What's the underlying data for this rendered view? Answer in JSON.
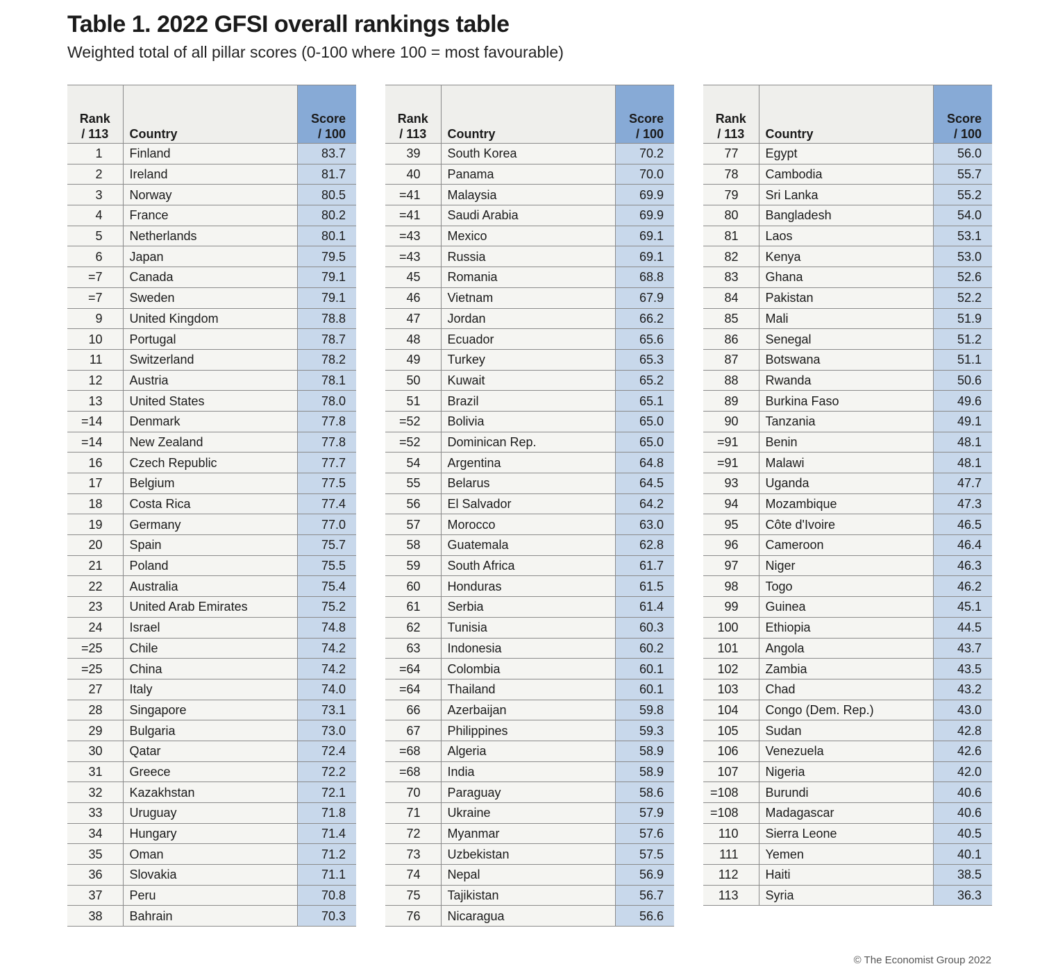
{
  "title": "Table 1. 2022 GFSI overall rankings table",
  "subtitle": "Weighted total of all pillar scores (0-100 where 100 = most favourable)",
  "headers": {
    "rank_line1": "Rank",
    "rank_line2": "/ 113",
    "country": "Country",
    "score_line1": "Score",
    "score_line2": "/ 100"
  },
  "footer": "© The Economist Group 2022",
  "colors": {
    "header_score_bg": "#87aad6",
    "score_cell_bg": "#c8d8eb",
    "header_bg": "#efefec",
    "cell_bg": "#f5f5f2"
  },
  "chart_data": {
    "type": "table",
    "columns": [
      "Rank / 113",
      "Country",
      "Score / 100"
    ],
    "rows": [
      {
        "rank": "1",
        "country": "Finland",
        "score": "83.7"
      },
      {
        "rank": "2",
        "country": "Ireland",
        "score": "81.7"
      },
      {
        "rank": "3",
        "country": "Norway",
        "score": "80.5"
      },
      {
        "rank": "4",
        "country": "France",
        "score": "80.2"
      },
      {
        "rank": "5",
        "country": "Netherlands",
        "score": "80.1"
      },
      {
        "rank": "6",
        "country": "Japan",
        "score": "79.5"
      },
      {
        "rank": "=7",
        "country": "Canada",
        "score": "79.1"
      },
      {
        "rank": "=7",
        "country": "Sweden",
        "score": "79.1"
      },
      {
        "rank": "9",
        "country": "United Kingdom",
        "score": "78.8"
      },
      {
        "rank": "10",
        "country": "Portugal",
        "score": "78.7"
      },
      {
        "rank": "11",
        "country": "Switzerland",
        "score": "78.2"
      },
      {
        "rank": "12",
        "country": "Austria",
        "score": "78.1"
      },
      {
        "rank": "13",
        "country": "United States",
        "score": "78.0"
      },
      {
        "rank": "=14",
        "country": "Denmark",
        "score": "77.8"
      },
      {
        "rank": "=14",
        "country": "New Zealand",
        "score": "77.8"
      },
      {
        "rank": "16",
        "country": "Czech Republic",
        "score": "77.7"
      },
      {
        "rank": "17",
        "country": "Belgium",
        "score": "77.5"
      },
      {
        "rank": "18",
        "country": "Costa Rica",
        "score": "77.4"
      },
      {
        "rank": "19",
        "country": "Germany",
        "score": "77.0"
      },
      {
        "rank": "20",
        "country": "Spain",
        "score": "75.7"
      },
      {
        "rank": "21",
        "country": "Poland",
        "score": "75.5"
      },
      {
        "rank": "22",
        "country": "Australia",
        "score": "75.4"
      },
      {
        "rank": "23",
        "country": "United Arab Emirates",
        "score": "75.2"
      },
      {
        "rank": "24",
        "country": "Israel",
        "score": "74.8"
      },
      {
        "rank": "=25",
        "country": "Chile",
        "score": "74.2"
      },
      {
        "rank": "=25",
        "country": "China",
        "score": "74.2"
      },
      {
        "rank": "27",
        "country": "Italy",
        "score": "74.0"
      },
      {
        "rank": "28",
        "country": "Singapore",
        "score": "73.1"
      },
      {
        "rank": "29",
        "country": "Bulgaria",
        "score": "73.0"
      },
      {
        "rank": "30",
        "country": "Qatar",
        "score": "72.4"
      },
      {
        "rank": "31",
        "country": "Greece",
        "score": "72.2"
      },
      {
        "rank": "32",
        "country": "Kazakhstan",
        "score": "72.1"
      },
      {
        "rank": "33",
        "country": "Uruguay",
        "score": "71.8"
      },
      {
        "rank": "34",
        "country": "Hungary",
        "score": "71.4"
      },
      {
        "rank": "35",
        "country": "Oman",
        "score": "71.2"
      },
      {
        "rank": "36",
        "country": "Slovakia",
        "score": "71.1"
      },
      {
        "rank": "37",
        "country": "Peru",
        "score": "70.8"
      },
      {
        "rank": "38",
        "country": "Bahrain",
        "score": "70.3"
      },
      {
        "rank": "39",
        "country": "South Korea",
        "score": "70.2"
      },
      {
        "rank": "40",
        "country": "Panama",
        "score": "70.0"
      },
      {
        "rank": "=41",
        "country": "Malaysia",
        "score": "69.9"
      },
      {
        "rank": "=41",
        "country": "Saudi Arabia",
        "score": "69.9"
      },
      {
        "rank": "=43",
        "country": "Mexico",
        "score": "69.1"
      },
      {
        "rank": "=43",
        "country": "Russia",
        "score": "69.1"
      },
      {
        "rank": "45",
        "country": "Romania",
        "score": "68.8"
      },
      {
        "rank": "46",
        "country": "Vietnam",
        "score": "67.9"
      },
      {
        "rank": "47",
        "country": "Jordan",
        "score": "66.2"
      },
      {
        "rank": "48",
        "country": "Ecuador",
        "score": "65.6"
      },
      {
        "rank": "49",
        "country": "Turkey",
        "score": "65.3"
      },
      {
        "rank": "50",
        "country": "Kuwait",
        "score": "65.2"
      },
      {
        "rank": "51",
        "country": "Brazil",
        "score": "65.1"
      },
      {
        "rank": "=52",
        "country": "Bolivia",
        "score": "65.0"
      },
      {
        "rank": "=52",
        "country": "Dominican Rep.",
        "score": "65.0"
      },
      {
        "rank": "54",
        "country": "Argentina",
        "score": "64.8"
      },
      {
        "rank": "55",
        "country": "Belarus",
        "score": "64.5"
      },
      {
        "rank": "56",
        "country": "El Salvador",
        "score": "64.2"
      },
      {
        "rank": "57",
        "country": "Morocco",
        "score": "63.0"
      },
      {
        "rank": "58",
        "country": "Guatemala",
        "score": "62.8"
      },
      {
        "rank": "59",
        "country": "South Africa",
        "score": "61.7"
      },
      {
        "rank": "60",
        "country": "Honduras",
        "score": "61.5"
      },
      {
        "rank": "61",
        "country": "Serbia",
        "score": "61.4"
      },
      {
        "rank": "62",
        "country": "Tunisia",
        "score": "60.3"
      },
      {
        "rank": "63",
        "country": "Indonesia",
        "score": "60.2"
      },
      {
        "rank": "=64",
        "country": "Colombia",
        "score": "60.1"
      },
      {
        "rank": "=64",
        "country": "Thailand",
        "score": "60.1"
      },
      {
        "rank": "66",
        "country": "Azerbaijan",
        "score": "59.8"
      },
      {
        "rank": "67",
        "country": "Philippines",
        "score": "59.3"
      },
      {
        "rank": "=68",
        "country": "Algeria",
        "score": "58.9"
      },
      {
        "rank": "=68",
        "country": "India",
        "score": "58.9"
      },
      {
        "rank": "70",
        "country": "Paraguay",
        "score": "58.6"
      },
      {
        "rank": "71",
        "country": "Ukraine",
        "score": "57.9"
      },
      {
        "rank": "72",
        "country": "Myanmar",
        "score": "57.6"
      },
      {
        "rank": "73",
        "country": "Uzbekistan",
        "score": "57.5"
      },
      {
        "rank": "74",
        "country": "Nepal",
        "score": "56.9"
      },
      {
        "rank": "75",
        "country": "Tajikistan",
        "score": "56.7"
      },
      {
        "rank": "76",
        "country": "Nicaragua",
        "score": "56.6"
      },
      {
        "rank": "77",
        "country": "Egypt",
        "score": "56.0"
      },
      {
        "rank": "78",
        "country": "Cambodia",
        "score": "55.7"
      },
      {
        "rank": "79",
        "country": "Sri Lanka",
        "score": "55.2"
      },
      {
        "rank": "80",
        "country": "Bangladesh",
        "score": "54.0"
      },
      {
        "rank": "81",
        "country": "Laos",
        "score": "53.1"
      },
      {
        "rank": "82",
        "country": "Kenya",
        "score": "53.0"
      },
      {
        "rank": "83",
        "country": "Ghana",
        "score": "52.6"
      },
      {
        "rank": "84",
        "country": "Pakistan",
        "score": "52.2"
      },
      {
        "rank": "85",
        "country": "Mali",
        "score": "51.9"
      },
      {
        "rank": "86",
        "country": "Senegal",
        "score": "51.2"
      },
      {
        "rank": "87",
        "country": "Botswana",
        "score": "51.1"
      },
      {
        "rank": "88",
        "country": "Rwanda",
        "score": "50.6"
      },
      {
        "rank": "89",
        "country": "Burkina Faso",
        "score": "49.6"
      },
      {
        "rank": "90",
        "country": "Tanzania",
        "score": "49.1"
      },
      {
        "rank": "=91",
        "country": "Benin",
        "score": "48.1"
      },
      {
        "rank": "=91",
        "country": "Malawi",
        "score": "48.1"
      },
      {
        "rank": "93",
        "country": "Uganda",
        "score": "47.7"
      },
      {
        "rank": "94",
        "country": "Mozambique",
        "score": "47.3"
      },
      {
        "rank": "95",
        "country": "Côte d'Ivoire",
        "score": "46.5"
      },
      {
        "rank": "96",
        "country": "Cameroon",
        "score": "46.4"
      },
      {
        "rank": "97",
        "country": "Niger",
        "score": "46.3"
      },
      {
        "rank": "98",
        "country": "Togo",
        "score": "46.2"
      },
      {
        "rank": "99",
        "country": "Guinea",
        "score": "45.1"
      },
      {
        "rank": "100",
        "country": "Ethiopia",
        "score": "44.5"
      },
      {
        "rank": "101",
        "country": "Angola",
        "score": "43.7"
      },
      {
        "rank": "102",
        "country": "Zambia",
        "score": "43.5"
      },
      {
        "rank": "103",
        "country": "Chad",
        "score": "43.2"
      },
      {
        "rank": "104",
        "country": "Congo (Dem. Rep.)",
        "score": "43.0"
      },
      {
        "rank": "105",
        "country": "Sudan",
        "score": "42.8"
      },
      {
        "rank": "106",
        "country": "Venezuela",
        "score": "42.6"
      },
      {
        "rank": "107",
        "country": "Nigeria",
        "score": "42.0"
      },
      {
        "rank": "=108",
        "country": "Burundi",
        "score": "40.6"
      },
      {
        "rank": "=108",
        "country": "Madagascar",
        "score": "40.6"
      },
      {
        "rank": "110",
        "country": "Sierra Leone",
        "score": "40.5"
      },
      {
        "rank": "111",
        "country": "Yemen",
        "score": "40.1"
      },
      {
        "rank": "112",
        "country": "Haiti",
        "score": "38.5"
      },
      {
        "rank": "113",
        "country": "Syria",
        "score": "36.3"
      }
    ]
  }
}
